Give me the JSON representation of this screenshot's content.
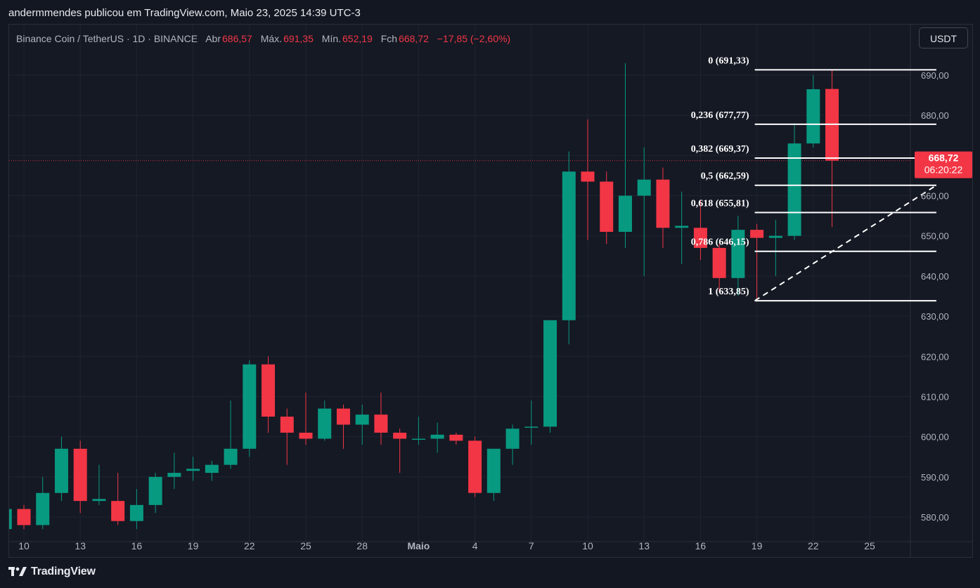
{
  "caption": "andermmendes publicou em TradingView.com, Maio 23, 2025 14:39 UTC-3",
  "legend": {
    "symbol": "Binance Coin / TetherUS · 1D · BINANCE",
    "open_label": "Abr",
    "open_value": "686,57",
    "high_label": "Máx.",
    "high_value": "691,35",
    "low_label": "Mín.",
    "low_value": "652,19",
    "close_label": "Fch",
    "close_value": "668,72",
    "change": "−17,85 (−2,60%)"
  },
  "currency_button": "USDT",
  "brand": "TradingView",
  "price_tag": {
    "price": "668,72",
    "countdown": "06:20:22",
    "value": 668.72
  },
  "colors": {
    "up": "#089981",
    "down": "#f23645",
    "background": "#131722",
    "grid": "#1f2430",
    "text": "#d1d4dc"
  },
  "chart_data": {
    "type": "candlestick",
    "y_range": [
      576,
      696
    ],
    "y_ticks": [
      {
        "value": 580,
        "label": "580,00"
      },
      {
        "value": 590,
        "label": "590,00"
      },
      {
        "value": 600,
        "label": "600,00"
      },
      {
        "value": 610,
        "label": "610,00"
      },
      {
        "value": 620,
        "label": "620,00"
      },
      {
        "value": 630,
        "label": "630,00"
      },
      {
        "value": 640,
        "label": "640,00"
      },
      {
        "value": 650,
        "label": "650,00"
      },
      {
        "value": 660,
        "label": "660,00"
      },
      {
        "value": 670,
        "label": "670,00"
      },
      {
        "value": 680,
        "label": "680,00"
      },
      {
        "value": 690,
        "label": "690,00"
      }
    ],
    "x_ticks": [
      {
        "label": "10",
        "date": "Apr 10"
      },
      {
        "label": "13",
        "date": "Apr 13"
      },
      {
        "label": "16",
        "date": "Apr 16"
      },
      {
        "label": "19",
        "date": "Apr 19"
      },
      {
        "label": "22",
        "date": "Apr 22"
      },
      {
        "label": "25",
        "date": "Apr 25"
      },
      {
        "label": "28",
        "date": "Apr 28"
      },
      {
        "label": "Maio",
        "date": "May 1"
      },
      {
        "label": "4",
        "date": "May 4"
      },
      {
        "label": "7",
        "date": "May 7"
      },
      {
        "label": "10",
        "date": "May 10"
      },
      {
        "label": "13",
        "date": "May 13"
      },
      {
        "label": "16",
        "date": "May 16"
      },
      {
        "label": "19",
        "date": "May 19"
      },
      {
        "label": "22",
        "date": "May 22"
      },
      {
        "label": "25",
        "date": "May 25"
      }
    ],
    "candles": [
      {
        "date": "Apr 9",
        "o": 577,
        "h": 582,
        "c": 582,
        "l": 576
      },
      {
        "date": "Apr 10",
        "o": 582,
        "h": 583,
        "c": 578,
        "l": 577
      },
      {
        "date": "Apr 11",
        "o": 578,
        "h": 590,
        "c": 586,
        "l": 577
      },
      {
        "date": "Apr 12",
        "o": 586,
        "h": 600,
        "c": 597,
        "l": 584
      },
      {
        "date": "Apr 13",
        "o": 597,
        "h": 599,
        "c": 584,
        "l": 581
      },
      {
        "date": "Apr 14",
        "o": 584,
        "h": 593,
        "c": 584.5,
        "l": 583
      },
      {
        "date": "Apr 15",
        "o": 584,
        "h": 591,
        "c": 579,
        "l": 578
      },
      {
        "date": "Apr 16",
        "o": 579,
        "h": 587,
        "c": 583,
        "l": 577
      },
      {
        "date": "Apr 17",
        "o": 583,
        "h": 591,
        "c": 590,
        "l": 581
      },
      {
        "date": "Apr 18",
        "o": 590,
        "h": 596,
        "c": 591,
        "l": 587
      },
      {
        "date": "Apr 19",
        "o": 591.5,
        "h": 595,
        "c": 592,
        "l": 589
      },
      {
        "date": "Apr 20",
        "o": 591,
        "h": 594,
        "c": 593,
        "l": 589
      },
      {
        "date": "Apr 21",
        "o": 593,
        "h": 609,
        "c": 597,
        "l": 592
      },
      {
        "date": "Apr 22",
        "o": 597,
        "h": 619,
        "c": 618,
        "l": 595
      },
      {
        "date": "Apr 23",
        "o": 618,
        "h": 620,
        "c": 605,
        "l": 601
      },
      {
        "date": "Apr 24",
        "o": 605,
        "h": 607,
        "c": 601,
        "l": 593
      },
      {
        "date": "Apr 25",
        "o": 601,
        "h": 611,
        "c": 599.5,
        "l": 598
      },
      {
        "date": "Apr 26",
        "o": 599.5,
        "h": 609,
        "c": 607,
        "l": 599
      },
      {
        "date": "Apr 27",
        "o": 607,
        "h": 608,
        "c": 603,
        "l": 597
      },
      {
        "date": "Apr 28",
        "o": 603,
        "h": 608,
        "c": 605.5,
        "l": 598
      },
      {
        "date": "Apr 29",
        "o": 605.5,
        "h": 611,
        "c": 601,
        "l": 598
      },
      {
        "date": "Apr 30",
        "o": 601,
        "h": 602,
        "c": 599.5,
        "l": 591
      },
      {
        "date": "May 1",
        "o": 599.5,
        "h": 605,
        "c": 599.5,
        "l": 598
      },
      {
        "date": "May 2",
        "o": 599.5,
        "h": 603.5,
        "c": 600.5,
        "l": 596
      },
      {
        "date": "May 3",
        "o": 600.5,
        "h": 601,
        "c": 599,
        "l": 598
      },
      {
        "date": "May 4",
        "o": 599,
        "h": 600,
        "c": 586,
        "l": 585
      },
      {
        "date": "May 5",
        "o": 586,
        "h": 597,
        "c": 597,
        "l": 584
      },
      {
        "date": "May 6",
        "o": 597,
        "h": 603,
        "c": 602,
        "l": 593
      },
      {
        "date": "May 7",
        "o": 602.5,
        "h": 609,
        "c": 602.5,
        "l": 598
      },
      {
        "date": "May 8",
        "o": 602.5,
        "h": 629,
        "c": 629,
        "l": 601
      },
      {
        "date": "May 9",
        "o": 629,
        "h": 671,
        "c": 666,
        "l": 623
      },
      {
        "date": "May 10",
        "o": 666,
        "h": 679,
        "c": 663.5,
        "l": 649
      },
      {
        "date": "May 11",
        "o": 663.5,
        "h": 666,
        "c": 651,
        "l": 648
      },
      {
        "date": "May 12",
        "o": 651,
        "h": 693,
        "c": 660,
        "l": 647
      },
      {
        "date": "May 13",
        "o": 660,
        "h": 672,
        "c": 664,
        "l": 640
      },
      {
        "date": "May 14",
        "o": 664,
        "h": 667,
        "c": 652,
        "l": 647
      },
      {
        "date": "May 15",
        "o": 652,
        "h": 661,
        "c": 652.5,
        "l": 643
      },
      {
        "date": "May 16",
        "o": 652,
        "h": 659,
        "c": 647,
        "l": 644
      },
      {
        "date": "May 17",
        "o": 647,
        "h": 648,
        "c": 639.5,
        "l": 636
      },
      {
        "date": "May 18",
        "o": 639.5,
        "h": 655,
        "c": 651.5,
        "l": 635
      },
      {
        "date": "May 19",
        "o": 651.5,
        "h": 653,
        "c": 649.5,
        "l": 634
      },
      {
        "date": "May 20",
        "o": 649.5,
        "h": 654,
        "c": 650,
        "l": 640
      },
      {
        "date": "May 21",
        "o": 650,
        "h": 678,
        "c": 673,
        "l": 649
      },
      {
        "date": "May 22",
        "o": 673,
        "h": 690,
        "c": 686.5,
        "l": 672
      },
      {
        "date": "May 23",
        "o": 686.57,
        "h": 691.35,
        "c": 668.72,
        "l": 652.19
      }
    ],
    "fibonacci": {
      "start_date": "May 19",
      "end_date": "May 29",
      "levels": [
        {
          "label": "0 (691,33)",
          "value": 691.33
        },
        {
          "label": "0,236 (677,77)",
          "value": 677.77
        },
        {
          "label": "0,382 (669,37)",
          "value": 669.37
        },
        {
          "label": "0,5 (662,59)",
          "value": 662.59
        },
        {
          "label": "0,618 (655,81)",
          "value": 655.81
        },
        {
          "label": "0,786 (646,15)",
          "value": 646.15
        },
        {
          "label": "1 (633,85)",
          "value": 633.85
        }
      ],
      "trend_line": {
        "from_value": 633.85,
        "to_value": 662.59
      }
    }
  }
}
